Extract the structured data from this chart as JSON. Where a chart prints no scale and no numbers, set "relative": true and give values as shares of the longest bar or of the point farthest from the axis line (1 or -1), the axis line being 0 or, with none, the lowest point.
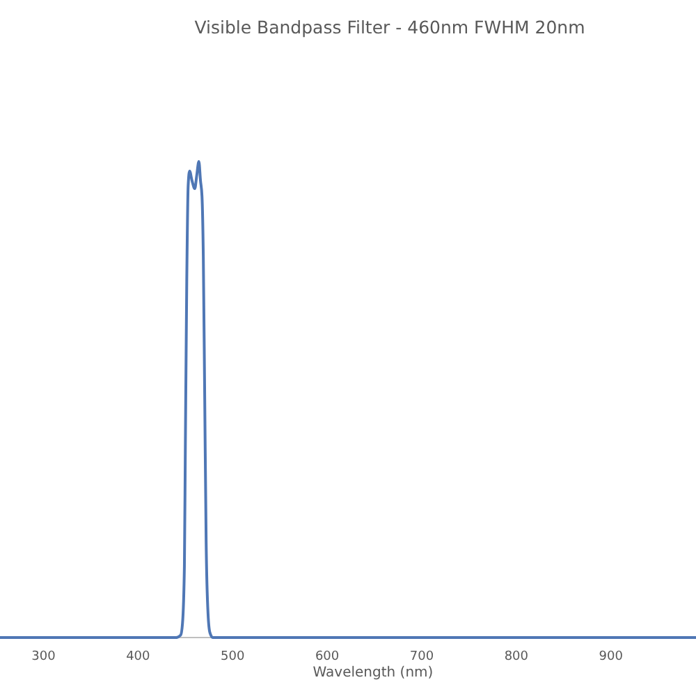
{
  "chart_data": {
    "type": "line",
    "title": "Visible Bandpass Filter - 460nm FWHM 20nm",
    "xlabel": "Wavelength (nm)",
    "relative": true,
    "xlim": [
      254,
      990
    ],
    "xticks": [
      300,
      400,
      500,
      600,
      700,
      800,
      900
    ],
    "series": [
      {
        "color": "#4f77b5",
        "x": [
          254,
          440,
          445,
          447,
          449,
          450,
          451.5,
          453,
          454.5,
          457,
          460,
          462,
          464.3,
          466,
          467.6,
          469,
          470.5,
          472,
          474,
          476,
          479,
          990
        ],
        "values": [
          0,
          0,
          0.005,
          0.03,
          0.15,
          0.4,
          0.75,
          0.95,
          0.98,
          0.96,
          0.943,
          0.97,
          1.0,
          0.96,
          0.927,
          0.8,
          0.5,
          0.2,
          0.05,
          0.01,
          0,
          0
        ]
      }
    ]
  }
}
